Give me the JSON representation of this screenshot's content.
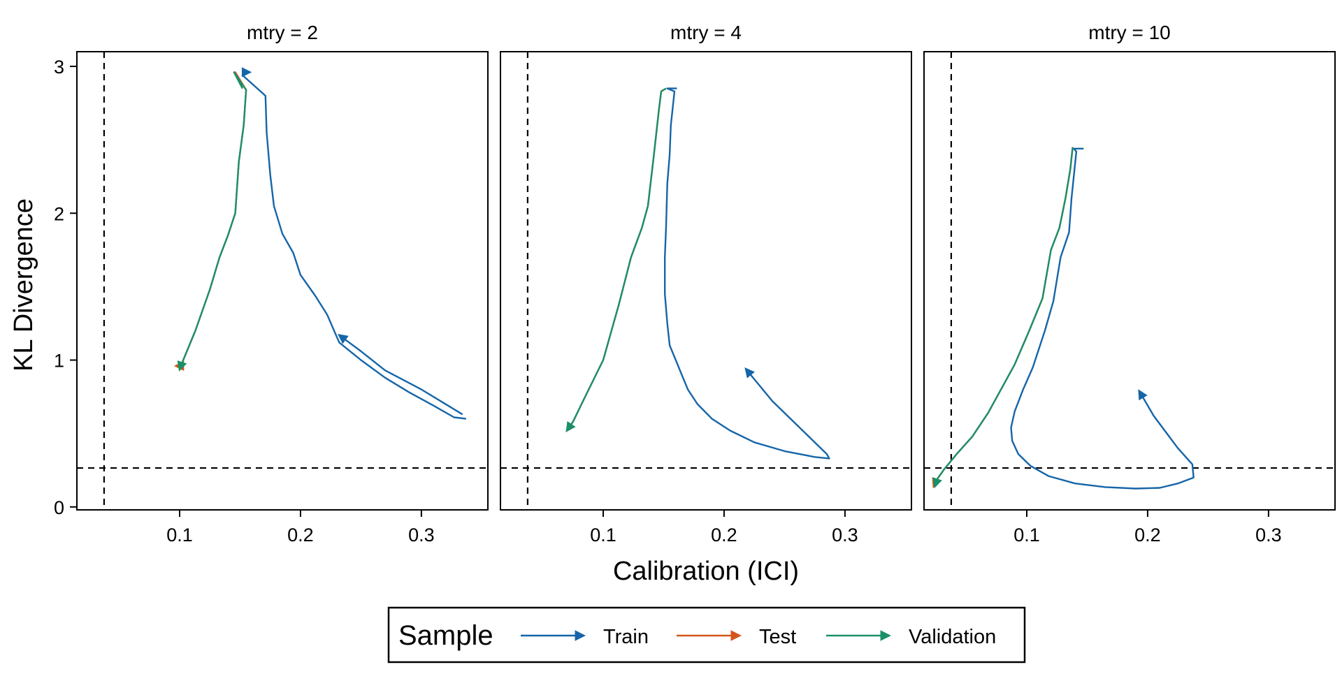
{
  "chart_data": {
    "type": "line",
    "xlabel": "Calibration (ICI)",
    "ylabel": "KL Divergence",
    "xlim": [
      0.015,
      0.355
    ],
    "ylim": [
      -0.02,
      3.1
    ],
    "x_ticks": [
      0.1,
      0.2,
      0.3
    ],
    "x_tick_labels": [
      "0.1",
      "0.2",
      "0.3"
    ],
    "y_ticks": [
      0,
      1,
      2,
      3
    ],
    "y_tick_labels": [
      "0",
      "1",
      "2",
      "3"
    ],
    "reference_lines": {
      "vertical_x": 0.0375,
      "horizontal_y": 0.265,
      "style": "dashed"
    },
    "grid": false,
    "colors": {
      "Train": "#1565a8",
      "Test": "#d4561c",
      "Validation": "#1a9069"
    },
    "legend": {
      "title": "Sample",
      "position": "bottom",
      "entries": [
        "Train",
        "Test",
        "Validation"
      ]
    },
    "panels": [
      {
        "title": "mtry = 2",
        "series": [
          {
            "name": "Train",
            "points": [
              [
                0.337,
                0.6
              ],
              [
                0.327,
                0.61
              ],
              [
                0.31,
                0.69
              ],
              [
                0.29,
                0.78
              ],
              [
                0.27,
                0.88
              ],
              [
                0.25,
                1.0
              ],
              [
                0.232,
                1.12
              ],
              [
                0.222,
                1.31
              ],
              [
                0.212,
                1.44
              ],
              [
                0.2,
                1.58
              ],
              [
                0.194,
                1.73
              ],
              [
                0.185,
                1.86
              ],
              [
                0.178,
                2.05
              ],
              [
                0.175,
                2.26
              ],
              [
                0.172,
                2.55
              ],
              [
                0.171,
                2.8
              ],
              [
                0.152,
                2.94
              ],
              [
                0.155,
                2.96
              ],
              [
                0.158,
                2.96
              ]
            ]
          },
          {
            "name": "Train",
            "points": [
              [
                0.334,
                0.63
              ],
              [
                0.3,
                0.8
              ],
              [
                0.27,
                0.93
              ],
              [
                0.25,
                1.06
              ],
              [
                0.232,
                1.17
              ]
            ]
          },
          {
            "name": "Test",
            "points": [
              [
                0.152,
                2.85
              ],
              [
                0.146,
                2.96
              ],
              [
                0.155,
                2.84
              ],
              [
                0.153,
                2.6
              ],
              [
                0.149,
                2.35
              ],
              [
                0.146,
                2.0
              ],
              [
                0.14,
                1.85
              ],
              [
                0.133,
                1.7
              ],
              [
                0.125,
                1.48
              ],
              [
                0.113,
                1.2
              ],
              [
                0.101,
                0.96
              ],
              [
                0.097,
                0.96
              ]
            ]
          },
          {
            "name": "Validation",
            "points": [
              [
                0.152,
                2.85
              ],
              [
                0.145,
                2.96
              ],
              [
                0.155,
                2.84
              ],
              [
                0.153,
                2.6
              ],
              [
                0.149,
                2.35
              ],
              [
                0.146,
                2.0
              ],
              [
                0.14,
                1.85
              ],
              [
                0.133,
                1.7
              ],
              [
                0.125,
                1.48
              ],
              [
                0.113,
                1.2
              ],
              [
                0.101,
                0.96
              ],
              [
                0.1,
                0.935
              ]
            ]
          }
        ]
      },
      {
        "title": "mtry = 4",
        "series": [
          {
            "name": "Train",
            "points": [
              [
                0.161,
                2.85
              ],
              [
                0.153,
                2.85
              ],
              [
                0.159,
                2.83
              ],
              [
                0.156,
                2.6
              ],
              [
                0.155,
                2.4
              ],
              [
                0.153,
                2.2
              ],
              [
                0.152,
                1.9
              ],
              [
                0.151,
                1.7
              ],
              [
                0.151,
                1.45
              ],
              [
                0.153,
                1.25
              ],
              [
                0.155,
                1.1
              ],
              [
                0.16,
                1.0
              ],
              [
                0.165,
                0.9
              ],
              [
                0.17,
                0.8
              ],
              [
                0.178,
                0.7
              ],
              [
                0.19,
                0.6
              ],
              [
                0.205,
                0.52
              ],
              [
                0.225,
                0.44
              ],
              [
                0.25,
                0.38
              ],
              [
                0.275,
                0.34
              ],
              [
                0.287,
                0.33
              ],
              [
                0.285,
                0.36
              ],
              [
                0.265,
                0.52
              ],
              [
                0.24,
                0.72
              ],
              [
                0.218,
                0.94
              ]
            ]
          },
          {
            "name": "Test",
            "points": [
              [
                0.152,
                2.85
              ],
              [
                0.148,
                2.83
              ],
              [
                0.146,
                2.7
              ],
              [
                0.142,
                2.4
              ],
              [
                0.137,
                2.05
              ],
              [
                0.132,
                1.9
              ],
              [
                0.123,
                1.7
              ],
              [
                0.113,
                1.38
              ],
              [
                0.1,
                1.0
              ],
              [
                0.085,
                0.75
              ],
              [
                0.075,
                0.58
              ],
              [
                0.07,
                0.52
              ]
            ]
          },
          {
            "name": "Validation",
            "points": [
              [
                0.152,
                2.85
              ],
              [
                0.148,
                2.83
              ],
              [
                0.146,
                2.7
              ],
              [
                0.142,
                2.4
              ],
              [
                0.137,
                2.05
              ],
              [
                0.132,
                1.9
              ],
              [
                0.123,
                1.7
              ],
              [
                0.113,
                1.38
              ],
              [
                0.1,
                1.0
              ],
              [
                0.085,
                0.75
              ],
              [
                0.075,
                0.58
              ],
              [
                0.07,
                0.52
              ]
            ]
          }
        ]
      },
      {
        "title": "mtry = 10",
        "series": [
          {
            "name": "Train",
            "points": [
              [
                0.147,
                2.44
              ],
              [
                0.139,
                2.44
              ],
              [
                0.141,
                2.42
              ],
              [
                0.137,
                2.1
              ],
              [
                0.135,
                1.87
              ],
              [
                0.128,
                1.7
              ],
              [
                0.122,
                1.4
              ],
              [
                0.115,
                1.2
              ],
              [
                0.105,
                0.95
              ],
              [
                0.097,
                0.8
              ],
              [
                0.09,
                0.65
              ],
              [
                0.087,
                0.54
              ],
              [
                0.088,
                0.45
              ],
              [
                0.093,
                0.36
              ],
              [
                0.103,
                0.28
              ],
              [
                0.118,
                0.21
              ],
              [
                0.14,
                0.16
              ],
              [
                0.165,
                0.135
              ],
              [
                0.19,
                0.125
              ],
              [
                0.21,
                0.13
              ],
              [
                0.225,
                0.16
              ],
              [
                0.238,
                0.2
              ],
              [
                0.237,
                0.29
              ],
              [
                0.225,
                0.4
              ],
              [
                0.205,
                0.62
              ],
              [
                0.193,
                0.79
              ]
            ]
          },
          {
            "name": "Test",
            "points": [
              [
                0.138,
                2.45
              ],
              [
                0.136,
                2.3
              ],
              [
                0.132,
                2.1
              ],
              [
                0.127,
                1.9
              ],
              [
                0.12,
                1.75
              ],
              [
                0.113,
                1.42
              ],
              [
                0.102,
                1.2
              ],
              [
                0.09,
                0.97
              ],
              [
                0.08,
                0.82
              ],
              [
                0.068,
                0.64
              ],
              [
                0.055,
                0.48
              ],
              [
                0.042,
                0.36
              ],
              [
                0.032,
                0.26
              ],
              [
                0.025,
                0.18
              ],
              [
                0.023,
                0.14
              ]
            ]
          },
          {
            "name": "Validation",
            "points": [
              [
                0.138,
                2.45
              ],
              [
                0.136,
                2.3
              ],
              [
                0.132,
                2.1
              ],
              [
                0.127,
                1.9
              ],
              [
                0.12,
                1.75
              ],
              [
                0.113,
                1.42
              ],
              [
                0.102,
                1.2
              ],
              [
                0.09,
                0.97
              ],
              [
                0.08,
                0.82
              ],
              [
                0.068,
                0.64
              ],
              [
                0.055,
                0.48
              ],
              [
                0.042,
                0.36
              ],
              [
                0.032,
                0.26
              ],
              [
                0.026,
                0.19
              ],
              [
                0.024,
                0.14
              ]
            ]
          }
        ]
      }
    ]
  }
}
